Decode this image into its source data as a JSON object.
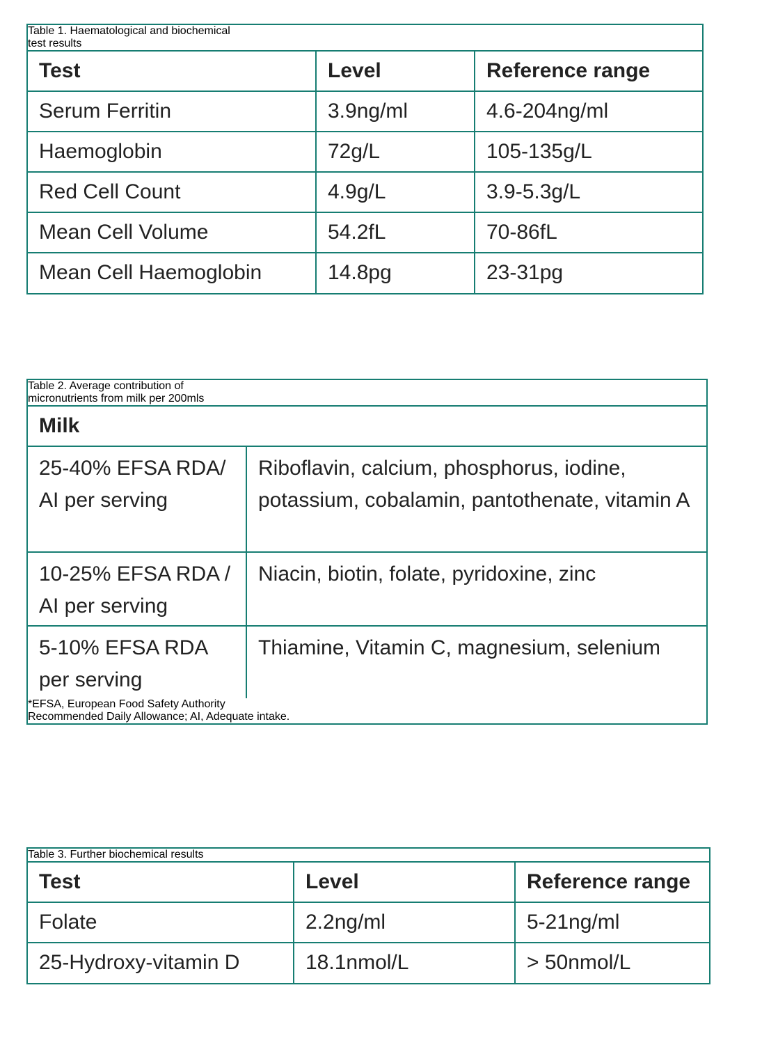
{
  "table1": {
    "title": [
      "Table 1. Haematological and  biochemical",
      "test results"
    ],
    "header": [
      "Test",
      "Level",
      "Reference range"
    ],
    "rows": [
      [
        "Serum Ferritin",
        "3.9ng/ml",
        "4.6-204ng/ml"
      ],
      [
        "Haemoglobin",
        "72g/L",
        "105-135g/L"
      ],
      [
        "Red Cell Count",
        "4.9g/L",
        "3.9-5.3g/L"
      ],
      [
        "Mean Cell Volume",
        "54.2fL",
        "70-86fL"
      ],
      [
        "Mean Cell Haemoglobin",
        "14.8pg",
        "23-31pg"
      ]
    ]
  },
  "table2": {
    "title": [
      "Table 2. Average contribution of",
      "micronutrients from milk per 200mls"
    ],
    "header": "Milk",
    "rows": [
      [
        "25-40% EFSA RDA/ AI per serving",
        "Riboflavin, calcium, phosphorus, iodine, potassium, cobalamin, pantothenate, vitamin A"
      ],
      [
        "10-25% EFSA RDA / AI per serving",
        "Niacin, biotin, folate, pyridoxine, zinc"
      ],
      [
        "5-10% EFSA RDA per serving",
        "Thiamine, Vitamin C, magnesium, selenium"
      ]
    ],
    "footnote": [
      "*EFSA, European Food Safety Authority",
      "Recommended Daily Allowance; AI, Adequate intake."
    ]
  },
  "table3": {
    "title": [
      "Table 3. Further biochemical results"
    ],
    "header": [
      "Test",
      "Level",
      "Reference range"
    ],
    "rows": [
      [
        "Folate",
        "2.2ng/ml",
        "5-21ng/ml"
      ],
      [
        "25-Hydroxy-vitamin D",
        "18.1nmol/L",
        "> 50nmol/L"
      ]
    ]
  }
}
